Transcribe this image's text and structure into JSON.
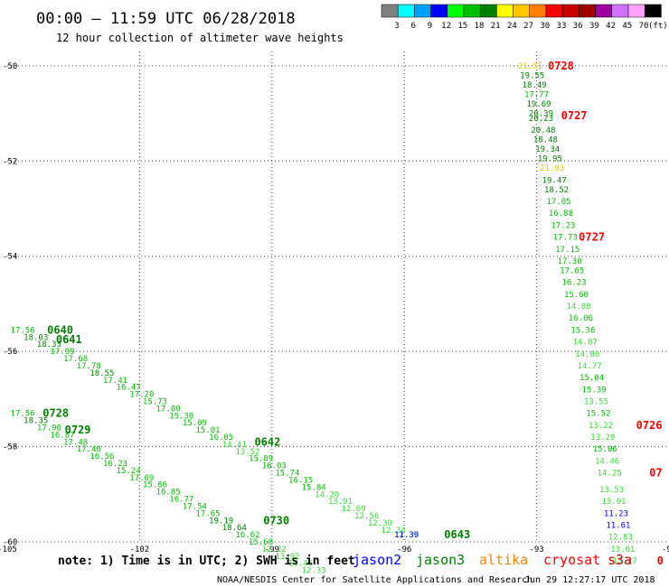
{
  "header": {
    "title": "00:00 – 11:59 UTC 06/28/2018",
    "subtitle": "12 hour collection of altimeter wave heights"
  },
  "colorbar": {
    "unit": "(ft)",
    "bins": [
      {
        "label": "3",
        "color": "#808080"
      },
      {
        "label": "6",
        "color": "#00ffff"
      },
      {
        "label": "9",
        "color": "#00a0ff"
      },
      {
        "label": "12",
        "color": "#0000ff"
      },
      {
        "label": "15",
        "color": "#00ff00"
      },
      {
        "label": "18",
        "color": "#00c000"
      },
      {
        "label": "21",
        "color": "#008000"
      },
      {
        "label": "24",
        "color": "#ffff00"
      },
      {
        "label": "27",
        "color": "#ffc800"
      },
      {
        "label": "30",
        "color": "#ff8000"
      },
      {
        "label": "33",
        "color": "#ff0000"
      },
      {
        "label": "36",
        "color": "#c80000"
      },
      {
        "label": "39",
        "color": "#a00000"
      },
      {
        "label": "42",
        "color": "#a000a0"
      },
      {
        "label": "45",
        "color": "#d070ff"
      },
      {
        "label": "70",
        "color": "#ffa0ff"
      },
      {
        "label": "",
        "color": "#000000"
      }
    ]
  },
  "footer": {
    "note": "note: 1) Time is in UTC; 2) SWH is in feet",
    "credit": "NOAA/NESDIS Center for Satellite Applications and Research",
    "timestamp": "Jun 29 12:27:17 UTC 2018",
    "satellites": [
      {
        "name": "jason2",
        "color": "#0000ff"
      },
      {
        "name": "jason3",
        "color": "#008000"
      },
      {
        "name": "altika",
        "color": "#ff8000"
      },
      {
        "name": "cryosat",
        "color": "#ff0000"
      },
      {
        "name": "s3a",
        "color": "#cc0000"
      }
    ]
  },
  "chart_data": {
    "type": "scatter",
    "title": "",
    "xlabel": "",
    "ylabel": "",
    "xlim": [
      -105,
      -90
    ],
    "ylim": [
      -60,
      -49.7
    ],
    "xticks": [
      "-105",
      "-102",
      "-99",
      "-96",
      "-93",
      "-90"
    ],
    "yticks": [
      "-50",
      "-52",
      "-54",
      "-56",
      "-58",
      "-60"
    ],
    "grid": true,
    "tracks": [
      {
        "satellite": "jason3",
        "points": [
          {
            "x": -104.65,
            "y": -55.55,
            "v": "17.56"
          },
          {
            "x": -104.35,
            "y": -55.7,
            "v": "18.03"
          },
          {
            "x": -104.05,
            "y": -55.85,
            "v": "18.33"
          },
          {
            "x": -103.75,
            "y": -56.0,
            "v": "17.99"
          },
          {
            "x": -103.45,
            "y": -56.15,
            "v": "17.68"
          },
          {
            "x": -103.15,
            "y": -56.3,
            "v": "17.78"
          },
          {
            "x": -102.85,
            "y": -56.45,
            "v": "18.55"
          },
          {
            "x": -102.55,
            "y": -56.6,
            "v": "17.41"
          },
          {
            "x": -102.25,
            "y": -56.75,
            "v": "16.47"
          },
          {
            "x": -101.95,
            "y": -56.9,
            "v": "17.20"
          },
          {
            "x": -101.65,
            "y": -57.05,
            "v": "15.73"
          },
          {
            "x": -101.35,
            "y": -57.2,
            "v": "17.00"
          },
          {
            "x": -101.05,
            "y": -57.35,
            "v": "15.30"
          },
          {
            "x": -100.75,
            "y": -57.5,
            "v": "15.09"
          },
          {
            "x": -100.45,
            "y": -57.65,
            "v": "15.01"
          },
          {
            "x": -100.15,
            "y": -57.8,
            "v": "16.05"
          },
          {
            "x": -99.85,
            "y": -57.95,
            "v": "14.41"
          },
          {
            "x": -99.55,
            "y": -58.1,
            "v": "13.52"
          },
          {
            "x": -99.25,
            "y": -58.25,
            "v": "15.89"
          },
          {
            "x": -98.95,
            "y": -58.4,
            "v": "16.03"
          },
          {
            "x": -98.65,
            "y": -58.55,
            "v": "15.74"
          },
          {
            "x": -98.35,
            "y": -58.7,
            "v": "16.15"
          },
          {
            "x": -98.05,
            "y": -58.85,
            "v": "15.84"
          },
          {
            "x": -97.75,
            "y": -59.0,
            "v": "14.20"
          },
          {
            "x": -97.45,
            "y": -59.15,
            "v": "13.91"
          },
          {
            "x": -97.15,
            "y": -59.3,
            "v": "12.69"
          },
          {
            "x": -96.85,
            "y": -59.45,
            "v": "12.56"
          },
          {
            "x": -96.55,
            "y": -59.6,
            "v": "12.30"
          },
          {
            "x": -96.25,
            "y": -59.75,
            "v": "12.34"
          },
          {
            "x": -95.95,
            "y": -59.85,
            "v": "12.36"
          }
        ]
      },
      {
        "satellite": "jason3",
        "points": [
          {
            "x": -104.65,
            "y": -57.3,
            "v": "17.56"
          },
          {
            "x": -104.35,
            "y": -57.45,
            "v": "18.35"
          },
          {
            "x": -104.05,
            "y": -57.6,
            "v": "17.90"
          },
          {
            "x": -103.75,
            "y": -57.75,
            "v": "16.87"
          },
          {
            "x": -103.45,
            "y": -57.9,
            "v": "17.48"
          },
          {
            "x": -103.15,
            "y": -58.05,
            "v": "17.40"
          },
          {
            "x": -102.85,
            "y": -58.2,
            "v": "16.56"
          },
          {
            "x": -102.55,
            "y": -58.35,
            "v": "16.23"
          },
          {
            "x": -102.25,
            "y": -58.5,
            "v": "15.24"
          },
          {
            "x": -101.95,
            "y": -58.65,
            "v": "17.09"
          },
          {
            "x": -101.65,
            "y": -58.8,
            "v": "15.86"
          },
          {
            "x": -101.35,
            "y": -58.95,
            "v": "16.85"
          },
          {
            "x": -101.05,
            "y": -59.1,
            "v": "16.77"
          },
          {
            "x": -100.75,
            "y": -59.25,
            "v": "17.54"
          },
          {
            "x": -100.45,
            "y": -59.4,
            "v": "17.65"
          },
          {
            "x": -100.15,
            "y": -59.55,
            "v": "19.19"
          },
          {
            "x": -99.85,
            "y": -59.7,
            "v": "18.64"
          },
          {
            "x": -99.55,
            "y": -59.85,
            "v": "16.62"
          },
          {
            "x": -99.25,
            "y": -60.0,
            "v": "15.68"
          },
          {
            "x": -98.95,
            "y": -60.15,
            "v": "12.22"
          },
          {
            "x": -98.65,
            "y": -60.3,
            "v": "13.92"
          },
          {
            "x": -98.35,
            "y": -60.45,
            "v": "13.46"
          },
          {
            "x": -98.05,
            "y": -60.6,
            "v": "12.33"
          }
        ]
      },
      {
        "satellite": "jason3",
        "points": [
          {
            "x": -93.15,
            "y": -50.0,
            "v": "21.51"
          },
          {
            "x": -93.1,
            "y": -50.2,
            "v": "19.55"
          },
          {
            "x": -93.05,
            "y": -50.4,
            "v": "18.49"
          },
          {
            "x": -93.0,
            "y": -50.6,
            "v": "17.77"
          },
          {
            "x": -92.95,
            "y": -50.8,
            "v": "19.69"
          },
          {
            "x": -92.9,
            "y": -51.0,
            "v": "20.39"
          },
          {
            "x": -92.9,
            "y": -51.1,
            "v": "20.23"
          },
          {
            "x": -92.85,
            "y": -51.35,
            "v": "20.48"
          },
          {
            "x": -92.8,
            "y": -51.55,
            "v": "18.48"
          },
          {
            "x": -92.75,
            "y": -51.75,
            "v": "19.34"
          },
          {
            "x": -92.7,
            "y": -51.95,
            "v": "19.95"
          },
          {
            "x": -92.65,
            "y": -52.15,
            "v": "21.03"
          },
          {
            "x": -92.6,
            "y": -52.4,
            "v": "19.47"
          },
          {
            "x": -92.55,
            "y": -52.6,
            "v": "18.52"
          },
          {
            "x": -92.5,
            "y": -52.85,
            "v": "17.05"
          },
          {
            "x": -92.45,
            "y": -53.1,
            "v": "16.88"
          },
          {
            "x": -92.4,
            "y": -53.35,
            "v": "17.23"
          },
          {
            "x": -92.35,
            "y": -53.6,
            "v": "17.73"
          },
          {
            "x": -92.3,
            "y": -53.85,
            "v": "17.15"
          },
          {
            "x": -92.25,
            "y": -54.1,
            "v": "17.30"
          },
          {
            "x": -92.2,
            "y": -54.3,
            "v": "17.65"
          },
          {
            "x": -92.15,
            "y": -54.55,
            "v": "16.23"
          },
          {
            "x": -92.1,
            "y": -54.8,
            "v": "15.60"
          },
          {
            "x": -92.05,
            "y": -55.05,
            "v": "14.88"
          },
          {
            "x": -92.0,
            "y": -55.3,
            "v": "16.06"
          },
          {
            "x": -91.95,
            "y": -55.55,
            "v": "15.36"
          },
          {
            "x": -91.9,
            "y": -55.8,
            "v": "14.87"
          },
          {
            "x": -91.85,
            "y": -56.05,
            "v": "14.80"
          },
          {
            "x": -91.8,
            "y": -56.3,
            "v": "14.77"
          },
          {
            "x": -91.75,
            "y": -56.55,
            "v": "15.04"
          },
          {
            "x": -91.7,
            "y": -56.8,
            "v": "15.39"
          },
          {
            "x": -91.65,
            "y": -57.05,
            "v": "13.55"
          },
          {
            "x": -91.6,
            "y": -57.3,
            "v": "15.52"
          },
          {
            "x": -91.55,
            "y": -57.55,
            "v": "13.22"
          },
          {
            "x": -91.5,
            "y": -57.8,
            "v": "13.29"
          },
          {
            "x": -91.45,
            "y": -58.05,
            "v": "15.06"
          },
          {
            "x": -91.4,
            "y": -58.3,
            "v": "14.46"
          },
          {
            "x": -91.35,
            "y": -58.55,
            "v": "14.25"
          },
          {
            "x": -91.3,
            "y": -58.9,
            "v": "13.53"
          },
          {
            "x": -91.25,
            "y": -59.15,
            "v": "13.01"
          },
          {
            "x": -91.2,
            "y": -59.4,
            "v": "11.23"
          },
          {
            "x": -91.15,
            "y": -59.65,
            "v": "11.61"
          },
          {
            "x": -91.1,
            "y": -59.9,
            "v": "12.83"
          },
          {
            "x": -91.05,
            "y": -60.15,
            "v": "13.01"
          },
          {
            "x": -91.0,
            "y": -60.4,
            "v": "12.27"
          }
        ]
      },
      {
        "satellite": "jason2",
        "points": [
          {
            "x": -95.95,
            "y": -59.85,
            "v": "11.39"
          }
        ]
      }
    ],
    "time_labels": [
      {
        "text": "0640",
        "x": -103.8,
        "y": -55.55,
        "color": "#008000"
      },
      {
        "text": "0641",
        "x": -103.6,
        "y": -55.75,
        "color": "#008000"
      },
      {
        "text": "0728",
        "x": -103.9,
        "y": -57.3,
        "color": "#008000"
      },
      {
        "text": "0729",
        "x": -103.4,
        "y": -57.65,
        "color": "#008000"
      },
      {
        "text": "0642",
        "x": -99.1,
        "y": -57.9,
        "color": "#008000"
      },
      {
        "text": "0730",
        "x": -98.9,
        "y": -59.55,
        "color": "#008000"
      },
      {
        "text": "0643",
        "x": -94.8,
        "y": -59.85,
        "color": "#008000"
      },
      {
        "text": "0728",
        "x": -92.45,
        "y": -50.0,
        "color": "#ff0000"
      },
      {
        "text": "0727",
        "x": -92.15,
        "y": -51.05,
        "color": "#ff0000"
      },
      {
        "text": "0727",
        "x": -91.75,
        "y": -53.6,
        "color": "#ff0000"
      },
      {
        "text": "0726",
        "x": -90.45,
        "y": -57.55,
        "color": "#ff0000"
      },
      {
        "text": "07",
        "x": -90.3,
        "y": -58.55,
        "color": "#ff0000"
      },
      {
        "text": "0",
        "x": -90.2,
        "y": -60.4,
        "color": "#ff0000"
      }
    ]
  }
}
